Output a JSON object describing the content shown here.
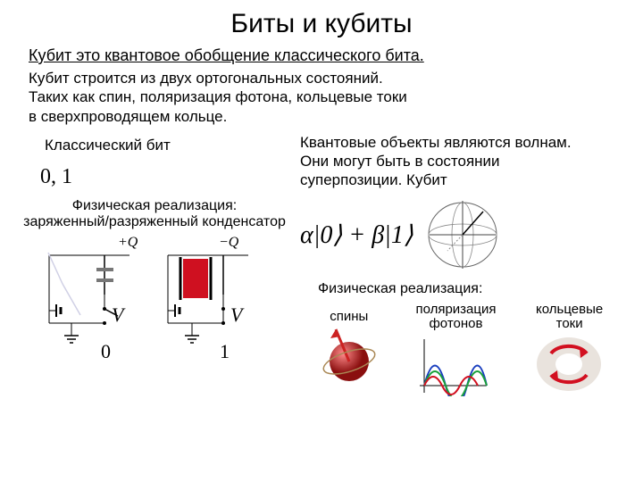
{
  "title": "Биты и кубиты",
  "subtitle": "Кубит это квантовое обобщение классического бита.",
  "intro": "Кубит строится из двух ортогональных состояний.\nТаких как спин, поляризация фотона, кольцевые токи\nв сверхпроводящем кольце.",
  "left": {
    "heading": "Классический бит",
    "formula": "0, 1",
    "realization": "Физическая реализация:\nзаряженный/разряженный конденсатор",
    "diagram": {
      "colors": {
        "red": "#cf1020",
        "darkgray": "#777777",
        "black": "#000000",
        "guide": "#d0d0e5"
      },
      "labels": {
        "plusQ": "+Q",
        "minusQ": "−Q",
        "V": "V",
        "zero": "0",
        "one": "1"
      }
    }
  },
  "right": {
    "quantum_desc": "Квантовые объекты являются волнам.\nОни могут быть в состоянии\nсуперпозиции. Кубит",
    "formula": "α|0⟩ + β|1⟩",
    "bloch_label": "",
    "realization_title": "Физическая реализация:",
    "items": {
      "spins": "спины",
      "photons": "поляризация\nфотонов",
      "currents": "кольцевые\nтоки"
    },
    "colors": {
      "sphere": "#bb2a2a",
      "arrow": "#cc2222",
      "blue": "#1a3fbf",
      "green": "#1aa03a",
      "red": "#d21020",
      "ring_bg": "#e9e3dd"
    }
  }
}
